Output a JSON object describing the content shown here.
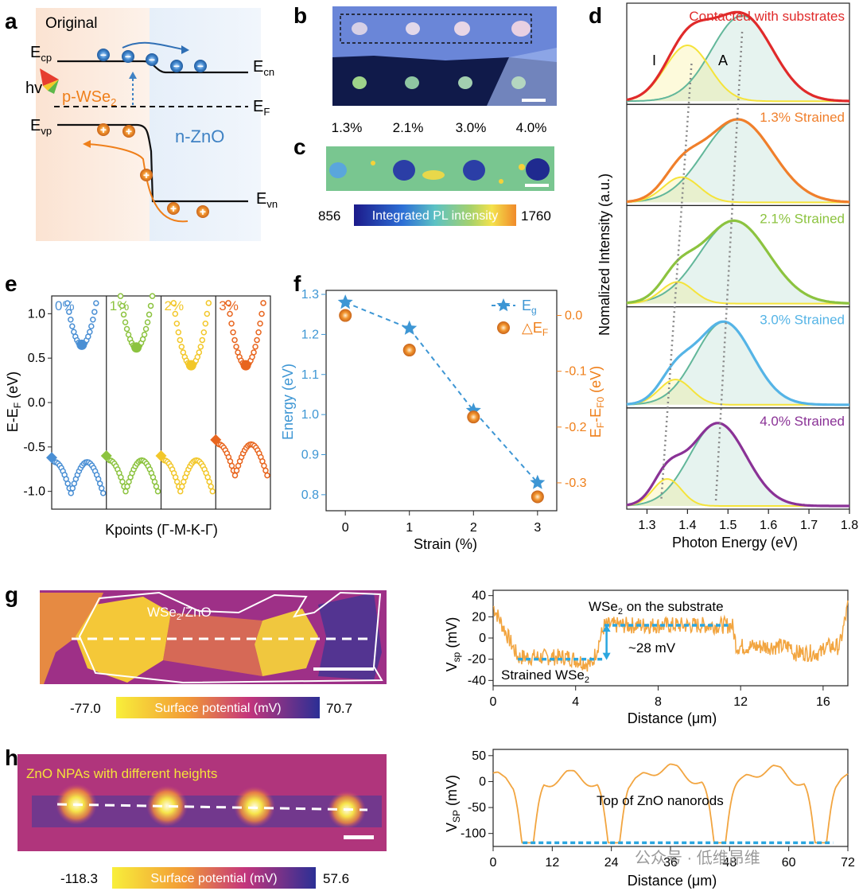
{
  "panel_labels": {
    "a": "a",
    "b": "b",
    "c": "c",
    "d": "d",
    "e": "e",
    "f": "f",
    "g": "g",
    "h": "h"
  },
  "panel_a": {
    "title": "Original",
    "p_label_main": "p-WSe",
    "p_label_sub": "2",
    "n_label": "n-ZnO",
    "hv": "hv",
    "Ecp": {
      "main": "E",
      "sub": "cp"
    },
    "Evp": {
      "main": "E",
      "sub": "vp"
    },
    "Ecn": {
      "main": "E",
      "sub": "cn"
    },
    "Evn": {
      "main": "E",
      "sub": "vn"
    },
    "EF": {
      "main": "E",
      "sub": "F"
    },
    "electron_symbol": "−",
    "hole_symbol": "+"
  },
  "panel_b": {
    "strain_labels": [
      "1.3%",
      "2.1%",
      "3.0%",
      "4.0%"
    ]
  },
  "panel_c": {
    "colorbar_min": "856",
    "colorbar_max": "1760",
    "colorbar_label": "Integrated PL intensity"
  },
  "panel_d": {
    "ylabel": "Nomalized Intensity (a.u.)",
    "xlabel": "Photon Energy (eV)",
    "xticks": [
      "1.3",
      "1.4",
      "1.5",
      "1.6",
      "1.7",
      "1.8"
    ],
    "xlim": [
      1.25,
      1.8
    ],
    "peak_labels": {
      "I": "I",
      "A": "A"
    },
    "colors": {
      "contact": "#e02a2a",
      "s13": "#f07f2b",
      "s21": "#8cc33f",
      "s30": "#55b4e6",
      "s40": "#8a3296",
      "trion": "#f5e33a",
      "exciton": "#62b79a"
    },
    "spectra": [
      {
        "label": "Contacted with substrates",
        "color_key": "contact",
        "I_center": 1.4,
        "I_amp": 0.62,
        "I_width": 0.055,
        "A_center": 1.535,
        "A_amp": 0.95,
        "A_width": 0.075
      },
      {
        "label": "1.3% Strained",
        "color_key": "s13",
        "I_center": 1.385,
        "I_amp": 0.28,
        "I_width": 0.045,
        "A_center": 1.525,
        "A_amp": 0.92,
        "A_width": 0.085
      },
      {
        "label": "2.1% Strained",
        "color_key": "s21",
        "I_center": 1.375,
        "I_amp": 0.24,
        "I_width": 0.04,
        "A_center": 1.515,
        "A_amp": 0.92,
        "A_width": 0.085
      },
      {
        "label": "3.0% Strained",
        "color_key": "s30",
        "I_center": 1.37,
        "I_amp": 0.28,
        "I_width": 0.04,
        "A_center": 1.49,
        "A_amp": 0.92,
        "A_width": 0.07
      },
      {
        "label": "4.0% Strained",
        "color_key": "s40",
        "I_center": 1.35,
        "I_amp": 0.3,
        "I_width": 0.035,
        "A_center": 1.475,
        "A_amp": 0.92,
        "A_width": 0.07
      }
    ]
  },
  "panel_e": {
    "ylabel_main": "E-E",
    "ylabel_sub": "F",
    "ylabel_tail": " (eV)",
    "xlabel": "Kpoints (Γ-M-K-Γ)",
    "yticks": [
      "1.0",
      "0.5",
      "0.0",
      "-0.5",
      "-1.0"
    ],
    "ylim": [
      -1.2,
      1.2
    ],
    "strains": [
      {
        "label": "0%",
        "color": "#4a8fd4",
        "cbm": 0.65,
        "vbm": -0.62
      },
      {
        "label": "1%",
        "color": "#8cc33f",
        "cbm": 0.62,
        "vbm": -0.6
      },
      {
        "label": "2%",
        "color": "#f2c72a",
        "cbm": 0.42,
        "vbm": -0.6
      },
      {
        "label": "3%",
        "color": "#e8651e",
        "cbm": 0.42,
        "vbm": -0.42
      }
    ]
  },
  "panel_f": {
    "xlabel": "Strain (%)",
    "ylabel_left": "Energy (eV)",
    "ylabel_right_main": "E",
    "ylabel_right_sub1": "F",
    "ylabel_right_mid": "-E",
    "ylabel_right_sub2": "F0",
    "ylabel_right_tail": " (eV)",
    "legend_eg_main": "E",
    "legend_eg_sub": "g",
    "legend_ef_main": "△E",
    "legend_ef_sub": "F",
    "xticks": [
      "0",
      "1",
      "2",
      "3"
    ],
    "yticks_left": [
      "1.3",
      "1.2",
      "1.1",
      "1.0",
      "0.9",
      "0.8"
    ],
    "yticks_right": [
      "0.0",
      "-0.1",
      "-0.2",
      "-0.3"
    ],
    "left_color": "#3d96d4",
    "right_color": "#ef7f1a",
    "chart_data": {
      "type": "scatter",
      "x": [
        0,
        1,
        2,
        3
      ],
      "series": [
        {
          "name": "Eg",
          "axis": "left",
          "values": [
            1.28,
            1.215,
            1.01,
            0.83
          ]
        },
        {
          "name": "△EF",
          "axis": "right",
          "values": [
            0.0,
            -0.062,
            -0.182,
            -0.325
          ]
        }
      ],
      "xlim": [
        -0.3,
        3.3
      ],
      "ylim_left": [
        0.76,
        1.31
      ],
      "ylim_right": [
        -0.35,
        0.045
      ]
    }
  },
  "panel_g": {
    "map_label_main": "WSe",
    "map_label_sub": "2",
    "map_label_tail": "/ZnO",
    "colorbar_min": "-77.0",
    "colorbar_max": "70.7",
    "colorbar_label": "Surface potential (mV)",
    "ylabel_main": "V",
    "ylabel_sub": "sp",
    "ylabel_tail": " (mV)",
    "xlabel": "Distance (μm)",
    "xticks": [
      "0",
      "4",
      "8",
      "12",
      "16"
    ],
    "yticks": [
      "40",
      "20",
      "0",
      "-20",
      "-40"
    ],
    "annot_top_main": "WSe",
    "annot_top_sub": "2",
    "annot_top_tail": " on the substrate",
    "annot_bottom_main": "Strained WSe",
    "annot_bottom_sub": "2",
    "annot_diff": "~28 mV",
    "chart_data": {
      "type": "line",
      "xlim": [
        0,
        17.2
      ],
      "ylim": [
        -45,
        45
      ],
      "segments": [
        {
          "x_from": 0,
          "x_to": 1.2,
          "level": "falling from 30 to -18"
        },
        {
          "x_from": 1.2,
          "x_to": 4.8,
          "level": -18
        },
        {
          "x_from": 5.4,
          "x_to": 11.6,
          "level": 12
        },
        {
          "x_from": 11.8,
          "x_to": 16.8,
          "level": -8
        }
      ],
      "strained_level": -20,
      "substrate_level": 12
    }
  },
  "panel_h": {
    "map_label": "ZnO NPAs with different heights",
    "colorbar_min": "-118.3",
    "colorbar_max": "57.6",
    "colorbar_label": "Surface potential (mV)",
    "ylabel_main": "V",
    "ylabel_sub": "SP",
    "ylabel_tail": " (mV)",
    "xlabel": "Distance (μm)",
    "xticks": [
      "0",
      "12",
      "24",
      "36",
      "48",
      "60",
      "72"
    ],
    "yticks": [
      "50",
      "0",
      "-50",
      "-100"
    ],
    "annot": "Top of ZnO nanorods",
    "watermark": "公众号 · 低维昂维",
    "chart_data": {
      "type": "line",
      "xlim": [
        0,
        72
      ],
      "ylim": [
        -125,
        62
      ],
      "dips_x": [
        7,
        24.5,
        46,
        66.5
      ],
      "dip_value": -118,
      "plateau_value": 45
    }
  }
}
